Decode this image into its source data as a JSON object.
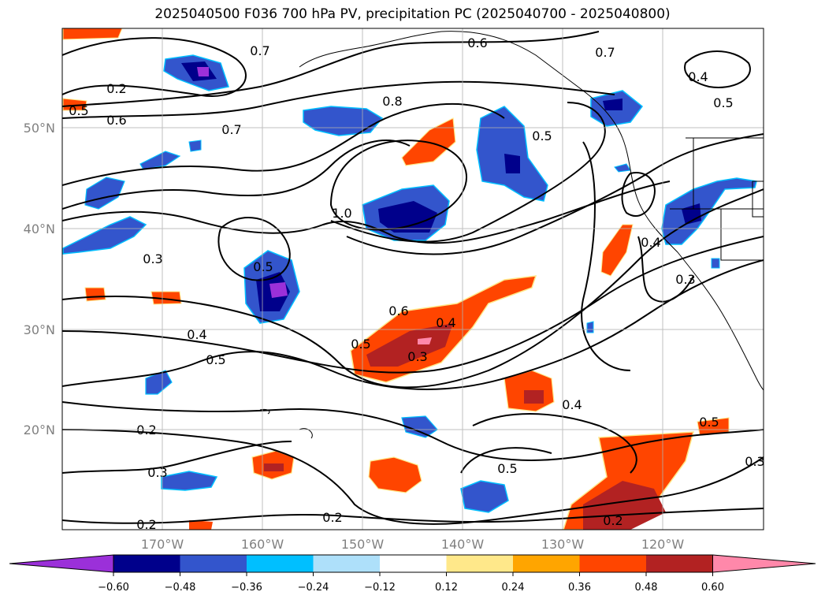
{
  "title": "2025040500 F036 700 hPa PV, precipitation PC (2025040700 - 2025040800)",
  "map": {
    "projection": "lat-lon",
    "lon_range": [
      -180,
      -110
    ],
    "lat_range": [
      10,
      60
    ],
    "lat_labels": [
      "50°N",
      "40°N",
      "30°N",
      "20°N"
    ],
    "lon_labels": [
      "170°W",
      "160°W",
      "150°W",
      "140°W",
      "130°W",
      "120°W"
    ],
    "gridlines": true,
    "contour_labels": [
      "0.2",
      "0.3",
      "0.4",
      "0.5",
      "0.6",
      "0.7",
      "0.8",
      "1.0"
    ]
  },
  "colorbar": {
    "ticks": [
      "−0.60",
      "−0.48",
      "−0.36",
      "−0.24",
      "−0.12",
      "0.12",
      "0.24",
      "0.36",
      "0.48",
      "0.60"
    ],
    "colors": [
      "#9b30d9",
      "#00008b",
      "#3355cc",
      "#00bfff",
      "#aee0fa",
      "#ffffff",
      "#ffe88a",
      "#ffa500",
      "#ff4500",
      "#b22222",
      "#ff88aa"
    ],
    "extend": "both"
  }
}
